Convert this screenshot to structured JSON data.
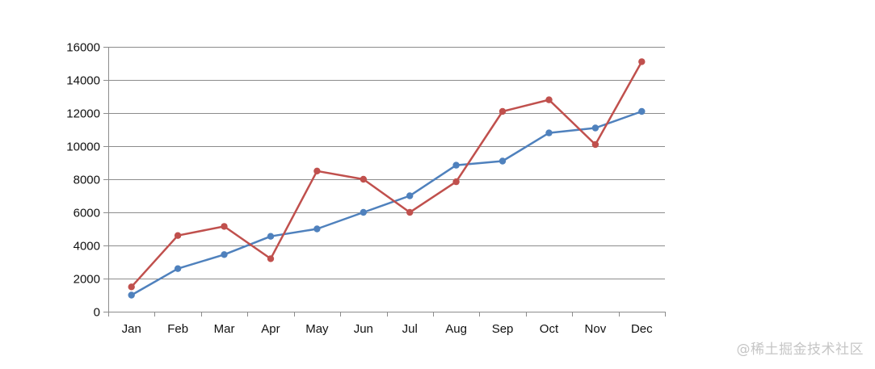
{
  "chart_data": {
    "type": "line",
    "categories": [
      "Jan",
      "Feb",
      "Mar",
      "Apr",
      "May",
      "Jun",
      "Jul",
      "Aug",
      "Sep",
      "Oct",
      "Nov",
      "Dec"
    ],
    "series": [
      {
        "color": "#4f81bd",
        "values": [
          1000,
          2600,
          3450,
          4550,
          5000,
          6000,
          7000,
          8850,
          9100,
          10800,
          11100,
          12100
        ]
      },
      {
        "color": "#c0504d",
        "values": [
          1500,
          4600,
          5150,
          3200,
          8500,
          8000,
          6000,
          7850,
          12100,
          12800,
          10100,
          15100
        ]
      }
    ],
    "ylim": [
      0,
      16000
    ],
    "yticks": [
      "0",
      "2000",
      "4000",
      "6000",
      "8000",
      "10000",
      "12000",
      "14000",
      "16000"
    ],
    "grid": true,
    "legend": "none"
  },
  "watermark": "@稀土掘金技术社区"
}
